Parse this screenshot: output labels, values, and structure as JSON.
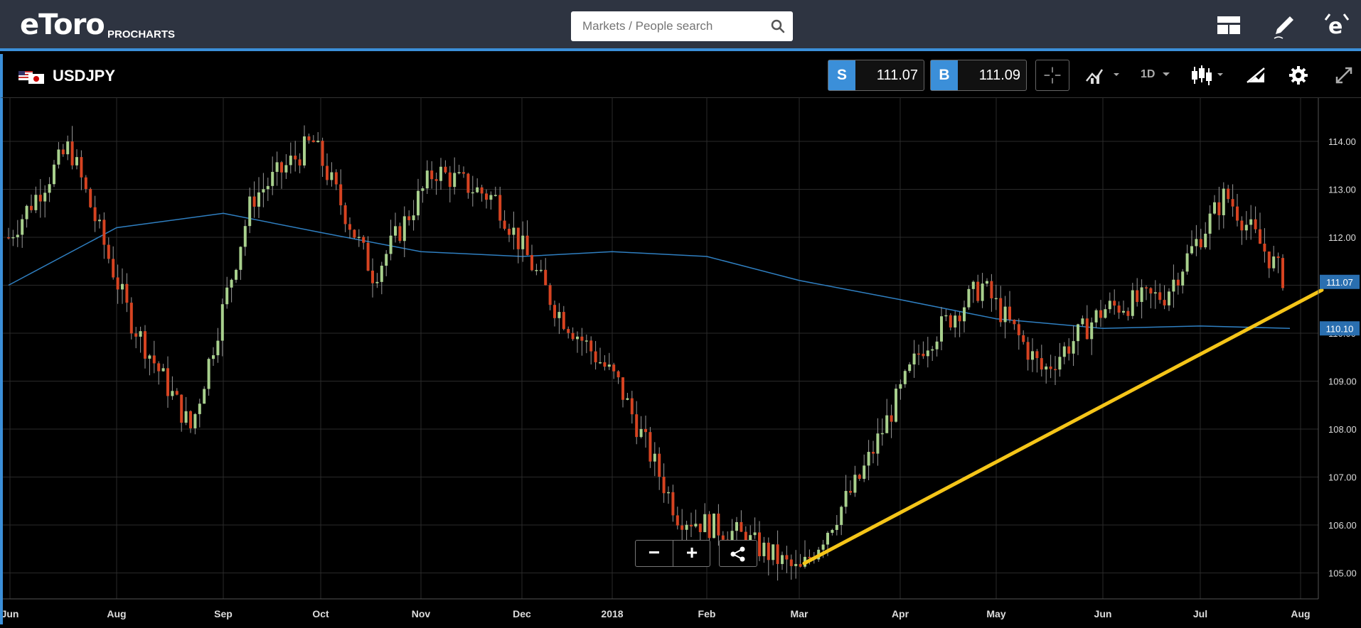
{
  "header": {
    "logo": "eToro",
    "logo_sub": "PROCHARTS",
    "search_placeholder": "Markets / People search"
  },
  "chart_header": {
    "symbol": "USDJPY",
    "sell_label": "S",
    "sell_price": "111.07",
    "buy_label": "B",
    "buy_price": "111.09",
    "timeframe": "1D"
  },
  "zoom": {
    "minus": "−",
    "plus": "+"
  },
  "colors": {
    "accent": "#3b8fd9",
    "up_candle": "#a8d08d",
    "down_candle": "#d64321",
    "ma_line": "#2f7fc1",
    "trendline": "#f5c518",
    "grid": "#2a2a2a"
  },
  "chart_data": {
    "type": "candlestick",
    "symbol": "USDJPY",
    "timeframe": "1D",
    "x_tick_labels": [
      "Jun",
      "Aug",
      "Sep",
      "Oct",
      "Nov",
      "Dec",
      "2018",
      "Feb",
      "Mar",
      "Apr",
      "May",
      "Jun",
      "Jul",
      "Aug"
    ],
    "y_tick_labels": [
      "114.00",
      "113.00",
      "112.00",
      "111.00",
      "110.00",
      "109.00",
      "108.00",
      "107.00",
      "106.00",
      "105.00"
    ],
    "ylim": [
      104.5,
      114.9
    ],
    "grid": true,
    "price_markers": [
      {
        "label": "111.07",
        "value": 111.07
      },
      {
        "label": "110.10",
        "value": 110.1
      }
    ],
    "approx_closes": [
      {
        "x": "Jun",
        "close": 112.0
      },
      {
        "x": "Jun",
        "close": 113.9
      },
      {
        "x": "Aug",
        "close": 110.3
      },
      {
        "x": "Sep",
        "close": 108.0
      },
      {
        "x": "Oct",
        "close": 112.8
      },
      {
        "x": "Nov",
        "close": 114.0
      },
      {
        "x": "Nov",
        "close": 111.2
      },
      {
        "x": "Dec",
        "close": 113.4
      },
      {
        "x": "2018",
        "close": 112.8
      },
      {
        "x": "2018",
        "close": 110.5
      },
      {
        "x": "Feb",
        "close": 109.0
      },
      {
        "x": "Feb",
        "close": 106.2
      },
      {
        "x": "Mar",
        "close": 105.8
      },
      {
        "x": "Apr",
        "close": 105.0
      },
      {
        "x": "Apr",
        "close": 107.0
      },
      {
        "x": "May",
        "close": 109.7
      },
      {
        "x": "May",
        "close": 111.0
      },
      {
        "x": "Jun",
        "close": 109.2
      },
      {
        "x": "Jun",
        "close": 110.5
      },
      {
        "x": "Jul",
        "close": 110.8
      },
      {
        "x": "Jul",
        "close": 112.9
      },
      {
        "x": "Aug",
        "close": 111.07
      }
    ],
    "moving_average": [
      {
        "x": "Jun",
        "y": 111.0
      },
      {
        "x": "Aug",
        "y": 112.2
      },
      {
        "x": "Sep",
        "y": 112.5
      },
      {
        "x": "Oct",
        "y": 112.1
      },
      {
        "x": "Nov",
        "y": 111.7
      },
      {
        "x": "Dec",
        "y": 111.6
      },
      {
        "x": "2018",
        "y": 111.7
      },
      {
        "x": "Feb",
        "y": 111.6
      },
      {
        "x": "Mar",
        "y": 111.1
      },
      {
        "x": "Apr",
        "y": 110.7
      },
      {
        "x": "May",
        "y": 110.3
      },
      {
        "x": "Jun",
        "y": 110.1
      },
      {
        "x": "Jul",
        "y": 110.15
      },
      {
        "x": "Aug",
        "y": 110.1
      }
    ],
    "trendline": [
      {
        "x": "Mar",
        "y": 105.2
      },
      {
        "x": "Aug",
        "y": 110.9
      }
    ]
  }
}
